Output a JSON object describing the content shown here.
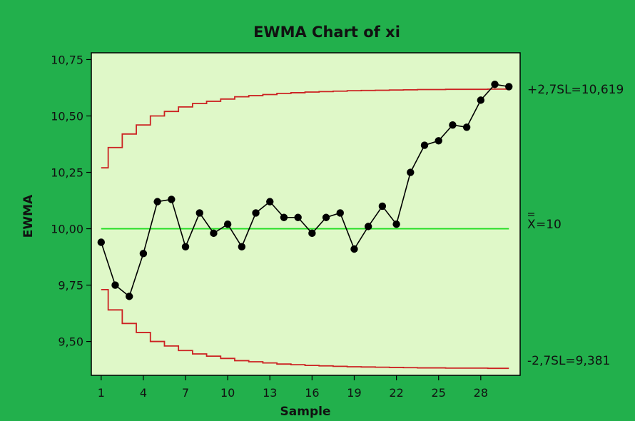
{
  "chart_data": {
    "type": "line",
    "title": "EWMA Chart of xi",
    "xlabel": "Sample",
    "ylabel": "EWMA",
    "x": [
      1,
      2,
      3,
      4,
      5,
      6,
      7,
      8,
      9,
      10,
      11,
      12,
      13,
      14,
      15,
      16,
      17,
      18,
      19,
      20,
      21,
      22,
      23,
      24,
      25,
      26,
      27,
      28,
      29,
      30
    ],
    "series": [
      {
        "values": [
          9.94,
          9.75,
          9.7,
          9.89,
          10.12,
          10.13,
          9.92,
          10.07,
          9.98,
          10.02,
          9.92,
          10.07,
          10.12,
          10.05,
          10.05,
          9.98,
          10.05,
          10.07,
          9.91,
          10.01,
          10.1,
          10.02,
          10.25,
          10.37,
          10.39,
          10.46,
          10.45,
          10.57,
          10.64,
          10.63
        ],
        "color": "#000000"
      }
    ],
    "center_line": {
      "value": 10,
      "color": "#22dd22"
    },
    "ucl": {
      "values": [
        10.27,
        10.36,
        10.42,
        10.46,
        10.5,
        10.52,
        10.54,
        10.555,
        10.565,
        10.575,
        10.585,
        10.59,
        10.595,
        10.6,
        10.603,
        10.606,
        10.608,
        10.61,
        10.612,
        10.613,
        10.614,
        10.615,
        10.616,
        10.617,
        10.617,
        10.618,
        10.618,
        10.618,
        10.619,
        10.619
      ],
      "color": "#cc2222"
    },
    "lcl": {
      "values": [
        9.73,
        9.64,
        9.58,
        9.54,
        9.5,
        9.48,
        9.46,
        9.445,
        9.435,
        9.425,
        9.415,
        9.41,
        9.405,
        9.4,
        9.397,
        9.394,
        9.392,
        9.39,
        9.388,
        9.387,
        9.386,
        9.385,
        9.384,
        9.383,
        9.383,
        9.382,
        9.382,
        9.382,
        9.381,
        9.381
      ],
      "color": "#cc2222"
    },
    "ylim": [
      9.35,
      10.78
    ],
    "xlim": [
      0.3,
      30.8
    ],
    "yticks": [
      9.5,
      9.75,
      10.0,
      10.25,
      10.5,
      10.75
    ],
    "ytick_labels": [
      "9,50",
      "9,75",
      "10,00",
      "10,25",
      "10,50",
      "10,75"
    ],
    "xticks": [
      1,
      4,
      7,
      10,
      13,
      16,
      19,
      22,
      25,
      28
    ],
    "xtick_labels": [
      "1",
      "4",
      "7",
      "10",
      "13",
      "16",
      "19",
      "22",
      "25",
      "28"
    ],
    "limit_labels": {
      "ucl": "+2,7SL=10,619",
      "center_symbol": "X",
      "center": "=10",
      "lcl": "-2,7SL=9,381"
    },
    "plot_background": "#dff8c8",
    "page_background": "#22b04c",
    "grid": false,
    "legend": "none"
  }
}
